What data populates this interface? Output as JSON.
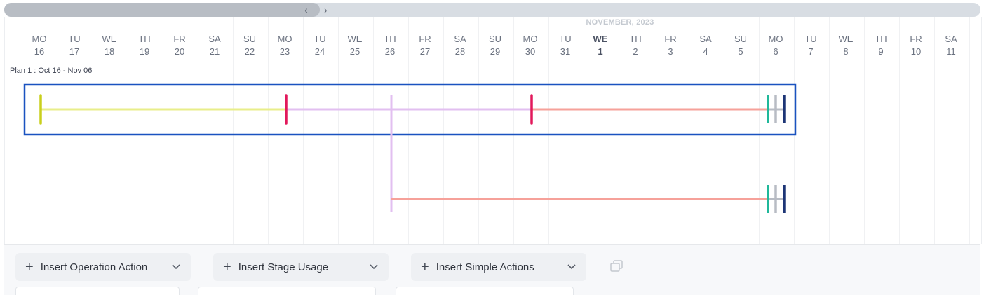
{
  "scrollbar": {
    "left_arrow": "‹",
    "right_arrow": "›"
  },
  "month_label": "NOVEMBER, 2023",
  "days": [
    {
      "dow": "MO",
      "num": "16"
    },
    {
      "dow": "TU",
      "num": "17"
    },
    {
      "dow": "WE",
      "num": "18"
    },
    {
      "dow": "TH",
      "num": "19"
    },
    {
      "dow": "FR",
      "num": "20"
    },
    {
      "dow": "SA",
      "num": "21"
    },
    {
      "dow": "SU",
      "num": "22"
    },
    {
      "dow": "MO",
      "num": "23"
    },
    {
      "dow": "TU",
      "num": "24"
    },
    {
      "dow": "WE",
      "num": "25"
    },
    {
      "dow": "TH",
      "num": "26"
    },
    {
      "dow": "FR",
      "num": "27"
    },
    {
      "dow": "SA",
      "num": "28"
    },
    {
      "dow": "SU",
      "num": "29"
    },
    {
      "dow": "MO",
      "num": "30"
    },
    {
      "dow": "TU",
      "num": "31"
    },
    {
      "dow": "WE",
      "num": "1"
    },
    {
      "dow": "TH",
      "num": "2"
    },
    {
      "dow": "FR",
      "num": "3"
    },
    {
      "dow": "SA",
      "num": "4"
    },
    {
      "dow": "SU",
      "num": "5"
    },
    {
      "dow": "MO",
      "num": "6"
    },
    {
      "dow": "TU",
      "num": "7"
    },
    {
      "dow": "WE",
      "num": "8"
    },
    {
      "dow": "TH",
      "num": "9"
    },
    {
      "dow": "FR",
      "num": "10"
    },
    {
      "dow": "SA",
      "num": "11"
    }
  ],
  "today": {
    "dow": "WE",
    "num": "1"
  },
  "plan_label": "Plan 1 : Oct 16 - Nov 06",
  "colors": {
    "stage_yellow": "#e8ee8a",
    "marker_yellow": "#c9cf1c",
    "stage_purple": "#e2bff0",
    "marker_red": "#e2185b",
    "stage_salmon": "#f6a19a",
    "marker_teal": "#20b89a",
    "marker_gray": "#b8bcc4",
    "marker_navy": "#1d3576",
    "selection_border": "#1a52c0"
  },
  "toolbar": {
    "insert_operation_action": "Insert Operation Action",
    "insert_stage_usage": "Insert Stage Usage",
    "insert_simple_actions": "Insert Simple Actions",
    "icons": {
      "add": "plus-icon",
      "dropdown": "chevron-down-icon",
      "copy": "copy-icon"
    }
  }
}
